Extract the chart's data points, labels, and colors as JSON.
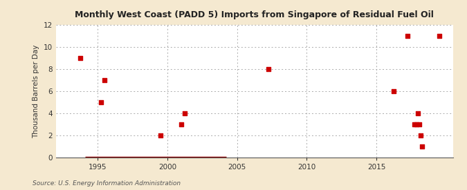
{
  "title": "Monthly West Coast (PADD 5) Imports from Singapore of Residual Fuel Oil",
  "ylabel": "Thousand Barrels per Day",
  "source": "Source: U.S. Energy Information Administration",
  "figure_bg": "#f5e9d0",
  "plot_bg": "#ffffff",
  "scatter_color": "#cc0000",
  "line_color": "#8b0000",
  "xlim": [
    1992,
    2020.5
  ],
  "ylim": [
    0,
    12
  ],
  "yticks": [
    0,
    2,
    4,
    6,
    8,
    10,
    12
  ],
  "xticks": [
    1995,
    2000,
    2005,
    2010,
    2015
  ],
  "scatter_points": [
    [
      1993.75,
      9
    ],
    [
      1995.5,
      7
    ],
    [
      1995.25,
      5
    ],
    [
      1999.5,
      2
    ],
    [
      2001.0,
      3
    ],
    [
      2001.25,
      4
    ],
    [
      2007.25,
      8
    ],
    [
      2016.25,
      6
    ],
    [
      2017.25,
      11
    ],
    [
      2017.75,
      3
    ],
    [
      2017.9,
      3
    ],
    [
      2018.0,
      4
    ],
    [
      2018.1,
      3
    ],
    [
      2018.2,
      2
    ],
    [
      2018.3,
      1
    ],
    [
      2019.5,
      11
    ]
  ],
  "zero_line_start": 1994.1,
  "zero_line_end": 2004.2
}
